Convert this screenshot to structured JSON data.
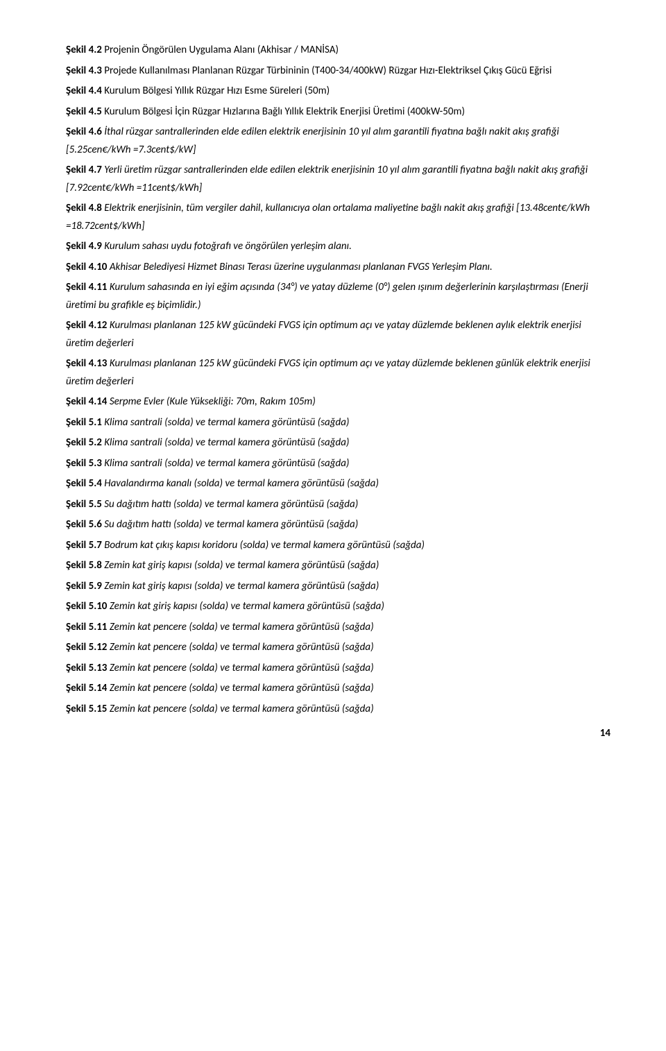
{
  "entries": [
    {
      "label": "Şekil 4.2",
      "text": "Projenin Öngörülen Uygulama Alanı (Akhisar / MANİSA)",
      "italic": false
    },
    {
      "label": "Şekil 4.3",
      "text": "Projede Kullanılması Planlanan Rüzgar Türbininin (T400-34/400kW) Rüzgar Hızı-Elektriksel Çıkış Gücü Eğrisi",
      "italic": false
    },
    {
      "label": "Şekil 4.4",
      "text": "Kurulum Bölgesi Yıllık Rüzgar Hızı Esme Süreleri (50m)",
      "italic": false
    },
    {
      "label": "Şekil 4.5",
      "text": "Kurulum Bölgesi İçin Rüzgar Hızlarına Bağlı Yıllık Elektrik Enerjisi Üretimi (400kW-50m)",
      "italic": false
    },
    {
      "label": "Şekil 4.6",
      "text": "İthal rüzgar santrallerinden elde edilen elektrik enerjisinin 10 yıl alım garantili fiyatına bağlı nakit akış grafiği [5.25cen€/kWh =7.3cent$/kW]",
      "italic": true
    },
    {
      "label": "Şekil 4.7",
      "text": "Yerli üretim rüzgar santrallerinden elde edilen elektrik enerjisinin 10 yıl alım garantili fiyatına bağlı nakit akış grafiği [7.92cent€/kWh =11cent$/kWh]",
      "italic": true
    },
    {
      "label": "Şekil 4.8",
      "text": "Elektrik enerjisinin, tüm vergiler dahil, kullanıcıya olan ortalama maliyetine bağlı nakit akış grafiği [13.48cent€/kWh =18.72cent$/kWh]",
      "italic": true
    },
    {
      "label": "Şekil 4.9",
      "text": "Kurulum sahası uydu fotoğrafı ve öngörülen yerleşim alanı.",
      "italic": true
    },
    {
      "label": "Şekil 4.10",
      "text": "Akhisar Belediyesi Hizmet Binası Terası üzerine uygulanması planlanan FVGS Yerleşim Planı.",
      "italic": true
    },
    {
      "label": "Şekil 4.11",
      "text": "Kurulum sahasında en iyi eğim açısında (34°) ve yatay düzleme (0°) gelen ışınım değerlerinin karşılaştırması (Enerji üretimi bu grafikle eş biçimlidir.)",
      "italic": true
    },
    {
      "label": "Şekil 4.12",
      "text": "Kurulması planlanan 125 kW gücündeki FVGS için optimum açı ve yatay düzlemde beklenen aylık elektrik enerjisi üretim değerleri",
      "italic": true
    },
    {
      "label": "Şekil 4.13",
      "text": "Kurulması planlanan 125 kW gücündeki FVGS için optimum açı ve yatay düzlemde beklenen günlük elektrik enerjisi üretim değerleri",
      "italic": true
    },
    {
      "label": "Şekil 4.14",
      "text": "Serpme Evler (Kule Yüksekliği: 70m, Rakım 105m)",
      "italic": true
    },
    {
      "label": "Şekil 5.1",
      "text": "Klima santrali (solda) ve termal kamera görüntüsü (sağda)",
      "italic": true
    },
    {
      "label": "Şekil 5.2",
      "text": "Klima santrali (solda) ve termal kamera görüntüsü (sağda)",
      "italic": true
    },
    {
      "label": "Şekil 5.3",
      "text": "Klima santrali (solda) ve termal kamera görüntüsü (sağda)",
      "italic": true
    },
    {
      "label": "Şekil 5.4",
      "text": "Havalandırma kanalı (solda) ve termal kamera görüntüsü (sağda)",
      "italic": true
    },
    {
      "label": "Şekil 5.5",
      "text": "Su dağıtım hattı (solda) ve termal kamera görüntüsü (sağda)",
      "italic": true
    },
    {
      "label": "Şekil 5.6",
      "text": "Su dağıtım hattı (solda) ve termal kamera görüntüsü (sağda)",
      "italic": true
    },
    {
      "label": "Şekil 5.7",
      "text": "Bodrum kat çıkış kapısı koridoru (solda) ve termal kamera görüntüsü (sağda)",
      "italic": true
    },
    {
      "label": "Şekil 5.8",
      "text": "Zemin kat giriş kapısı (solda) ve termal kamera görüntüsü (sağda)",
      "italic": true
    },
    {
      "label": "Şekil 5.9",
      "text": "Zemin kat giriş kapısı (solda) ve termal kamera görüntüsü (sağda)",
      "italic": true
    },
    {
      "label": "Şekil 5.10",
      "text": "Zemin kat giriş kapısı (solda) ve termal kamera görüntüsü (sağda)",
      "italic": true
    },
    {
      "label": "Şekil 5.11",
      "text": "Zemin kat pencere (solda) ve termal kamera görüntüsü (sağda)",
      "italic": true
    },
    {
      "label": "Şekil 5.12",
      "text": "Zemin kat pencere (solda) ve termal kamera görüntüsü (sağda)",
      "italic": true
    },
    {
      "label": "Şekil 5.13",
      "text": "Zemin kat pencere (solda) ve termal kamera görüntüsü (sağda)",
      "italic": true
    },
    {
      "label": "Şekil 5.14",
      "text": "Zemin kat pencere (solda) ve termal kamera görüntüsü (sağda)",
      "italic": true
    },
    {
      "label": "Şekil 5.15",
      "text": "Zemin kat pencere (solda) ve termal kamera görüntüsü (sağda)",
      "italic": true
    }
  ],
  "page_number": "14"
}
